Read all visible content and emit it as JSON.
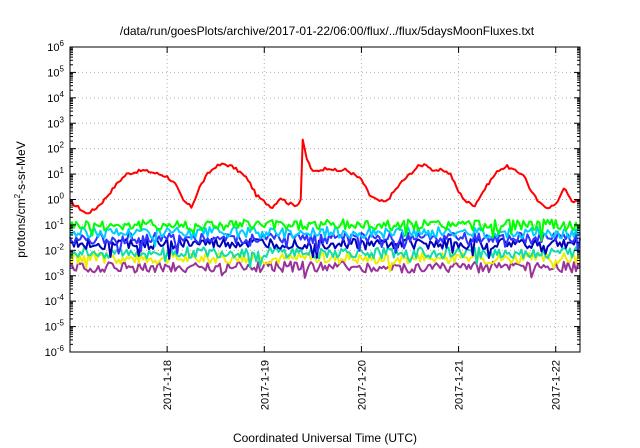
{
  "chart_data": {
    "type": "line",
    "title": "/data/run/goesPlots/archive/2017-01-22/06:00/flux/../flux/5daysMoonFluxes.txt",
    "xlabel": "Coordinated Universal Time (UTC)",
    "ylabel": "protons/cm2-s-sr-MeV",
    "yscale": "log",
    "ylim": [
      "1e-6",
      "1e6"
    ],
    "xlim": [
      "2017-01-17 00:00",
      "2017-01-22 06:00"
    ],
    "grid": true,
    "legend": "none",
    "y_ticks": [
      "10-6",
      "10-5",
      "10-4",
      "10-3",
      "10-2",
      "10-1",
      "100",
      "101",
      "102",
      "103",
      "104",
      "105",
      "106"
    ],
    "x_ticks": [
      {
        "label": "2017-1-18",
        "date": "2017-01-18"
      },
      {
        "label": "2017-1-19",
        "date": "2017-01-19"
      },
      {
        "label": "2017-1-20",
        "date": "2017-01-20"
      },
      {
        "label": "2017-1-21",
        "date": "2017-01-21"
      },
      {
        "label": "2017-1-22",
        "date": "2017-01-22"
      }
    ],
    "series": [
      {
        "color": "#ff0000",
        "x": [
          "2017-01-17 00:00",
          "2017-01-17 02:00",
          "2017-01-17 04:00",
          "2017-01-17 06:00",
          "2017-01-17 08:00",
          "2017-01-17 10:00",
          "2017-01-17 12:00",
          "2017-01-17 14:00",
          "2017-01-17 16:00",
          "2017-01-17 18:00",
          "2017-01-17 20:00",
          "2017-01-17 22:00",
          "2017-01-18 00:00",
          "2017-01-18 02:00",
          "2017-01-18 04:00",
          "2017-01-18 06:00",
          "2017-01-18 08:00",
          "2017-01-18 10:00",
          "2017-01-18 12:00",
          "2017-01-18 14:00",
          "2017-01-18 16:00",
          "2017-01-18 18:00",
          "2017-01-18 20:00",
          "2017-01-18 22:00",
          "2017-01-19 00:00",
          "2017-01-19 02:00",
          "2017-01-19 04:00",
          "2017-01-19 06:00",
          "2017-01-19 08:00",
          "2017-01-19 09:00",
          "2017-01-19 09:30",
          "2017-01-19 10:30",
          "2017-01-19 12:00",
          "2017-01-19 14:00",
          "2017-01-19 16:00",
          "2017-01-19 18:00",
          "2017-01-19 20:00",
          "2017-01-19 22:00",
          "2017-01-20 00:00",
          "2017-01-20 02:00",
          "2017-01-20 04:00",
          "2017-01-20 06:00",
          "2017-01-20 08:00",
          "2017-01-20 10:00",
          "2017-01-20 12:00",
          "2017-01-20 14:00",
          "2017-01-20 16:00",
          "2017-01-20 18:00",
          "2017-01-20 20:00",
          "2017-01-20 22:00",
          "2017-01-21 00:00",
          "2017-01-21 02:00",
          "2017-01-21 04:00",
          "2017-01-21 06:00",
          "2017-01-21 08:00",
          "2017-01-21 10:00",
          "2017-01-21 12:00",
          "2017-01-21 14:00",
          "2017-01-21 16:00",
          "2017-01-21 18:00",
          "2017-01-21 20:00",
          "2017-01-21 22:00",
          "2017-01-22 00:00",
          "2017-01-22 02:00",
          "2017-01-22 04:00",
          "2017-01-22 06:00"
        ],
        "y": [
          0.8,
          0.5,
          0.28,
          0.4,
          0.8,
          2,
          5,
          10,
          12,
          14,
          12,
          10,
          8,
          4,
          0.9,
          0.5,
          3,
          10,
          20,
          25,
          20,
          12,
          6,
          1.5,
          0.8,
          0.5,
          1.2,
          0.7,
          0.6,
          1,
          200,
          40,
          12,
          15,
          18,
          13,
          15,
          10,
          6,
          1.5,
          0.9,
          0.8,
          2,
          5,
          10,
          20,
          25,
          12,
          15,
          10,
          2,
          0.8,
          0.6,
          2,
          6,
          15,
          20,
          13,
          10,
          2,
          0.7,
          0.5,
          0.6,
          3,
          0.8,
          1
        ]
      },
      {
        "color": "#00ff00",
        "x": [
          "2017-01-17 00:00",
          "2017-01-17 12:00",
          "2017-01-18 00:00",
          "2017-01-18 12:00",
          "2017-01-19 00:00",
          "2017-01-19 12:00",
          "2017-01-20 00:00",
          "2017-01-20 12:00",
          "2017-01-21 00:00",
          "2017-01-21 12:00",
          "2017-01-22 00:00",
          "2017-01-22 06:00"
        ],
        "y": [
          0.1,
          0.1,
          0.1,
          0.1,
          0.1,
          0.1,
          0.1,
          0.1,
          0.1,
          0.1,
          0.1,
          0.1
        ]
      },
      {
        "color": "#00ccff",
        "x": [
          "2017-01-17 00:00",
          "2017-01-17 12:00",
          "2017-01-18 00:00",
          "2017-01-18 12:00",
          "2017-01-19 00:00",
          "2017-01-19 12:00",
          "2017-01-20 00:00",
          "2017-01-20 12:00",
          "2017-01-21 00:00",
          "2017-01-21 12:00",
          "2017-01-22 00:00",
          "2017-01-22 06:00"
        ],
        "y": [
          0.05,
          0.05,
          0.05,
          0.05,
          0.05,
          0.05,
          0.05,
          0.05,
          0.05,
          0.05,
          0.05,
          0.05
        ]
      },
      {
        "color": "#3333ff",
        "x": [
          "2017-01-17 00:00",
          "2017-01-17 12:00",
          "2017-01-18 00:00",
          "2017-01-18 12:00",
          "2017-01-19 00:00",
          "2017-01-19 12:00",
          "2017-01-20 00:00",
          "2017-01-20 12:00",
          "2017-01-21 00:00",
          "2017-01-21 12:00",
          "2017-01-22 00:00",
          "2017-01-22 06:00"
        ],
        "y": [
          0.03,
          0.03,
          0.03,
          0.03,
          0.03,
          0.03,
          0.03,
          0.03,
          0.03,
          0.03,
          0.03,
          0.03
        ]
      },
      {
        "color": "#0000bb",
        "x": [
          "2017-01-17 00:00",
          "2017-01-17 12:00",
          "2017-01-18 00:00",
          "2017-01-18 12:00",
          "2017-01-19 00:00",
          "2017-01-19 12:00",
          "2017-01-20 00:00",
          "2017-01-20 12:00",
          "2017-01-21 00:00",
          "2017-01-21 12:00",
          "2017-01-22 00:00",
          "2017-01-22 06:00"
        ],
        "y": [
          0.018,
          0.018,
          0.018,
          0.018,
          0.018,
          0.018,
          0.018,
          0.018,
          0.018,
          0.018,
          0.018,
          0.018
        ]
      },
      {
        "color": "#11ddaa",
        "x": [
          "2017-01-17 00:00",
          "2017-01-17 12:00",
          "2017-01-18 00:00",
          "2017-01-18 12:00",
          "2017-01-19 00:00",
          "2017-01-19 12:00",
          "2017-01-20 00:00",
          "2017-01-20 12:00",
          "2017-01-21 00:00",
          "2017-01-21 12:00",
          "2017-01-22 00:00",
          "2017-01-22 06:00"
        ],
        "y": [
          0.008,
          0.008,
          0.008,
          0.008,
          0.008,
          0.008,
          0.008,
          0.008,
          0.008,
          0.008,
          0.008,
          0.008
        ]
      },
      {
        "color": "#eeee00",
        "x": [
          "2017-01-17 00:00",
          "2017-01-17 12:00",
          "2017-01-18 00:00",
          "2017-01-18 12:00",
          "2017-01-19 00:00",
          "2017-01-19 12:00",
          "2017-01-20 00:00",
          "2017-01-20 12:00",
          "2017-01-21 00:00",
          "2017-01-21 12:00",
          "2017-01-22 00:00",
          "2017-01-22 06:00"
        ],
        "y": [
          0.005,
          0.005,
          0.005,
          0.005,
          0.005,
          0.005,
          0.005,
          0.005,
          0.005,
          0.005,
          0.005,
          0.005
        ]
      },
      {
        "color": "#993399",
        "x": [
          "2017-01-17 00:00",
          "2017-01-17 12:00",
          "2017-01-18 00:00",
          "2017-01-18 12:00",
          "2017-01-19 00:00",
          "2017-01-19 12:00",
          "2017-01-20 00:00",
          "2017-01-20 12:00",
          "2017-01-21 00:00",
          "2017-01-21 12:00",
          "2017-01-22 00:00",
          "2017-01-22 06:00"
        ],
        "y": [
          0.0022,
          0.0022,
          0.0022,
          0.0022,
          0.0022,
          0.0022,
          0.0022,
          0.0022,
          0.0022,
          0.0022,
          0.0022,
          0.0022
        ]
      }
    ]
  }
}
